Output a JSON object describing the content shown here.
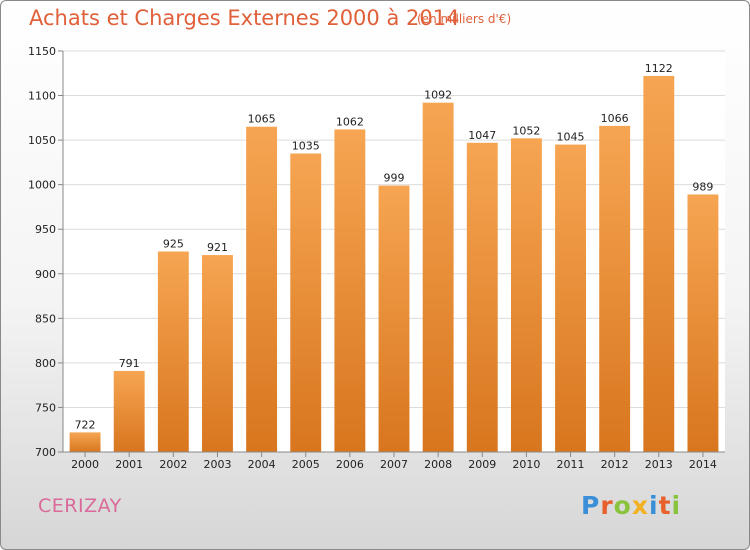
{
  "chart_data": {
    "type": "bar",
    "title": "Achats et Charges Externes 2000 à 2014",
    "subtitle": "(en milliers d'€)",
    "categories": [
      "2000",
      "2001",
      "2002",
      "2003",
      "2004",
      "2005",
      "2006",
      "2007",
      "2008",
      "2009",
      "2010",
      "2011",
      "2012",
      "2013",
      "2014"
    ],
    "values": [
      722,
      791,
      925,
      921,
      1065,
      1035,
      1062,
      999,
      1092,
      1047,
      1052,
      1045,
      1066,
      1122,
      989
    ],
    "ylim": [
      700,
      1150
    ],
    "yticks": [
      700,
      750,
      800,
      850,
      900,
      950,
      1000,
      1050,
      1100,
      1150
    ],
    "grid": true,
    "bar_color_top": "#f6a552",
    "bar_color_bottom": "#d8761e"
  },
  "commune": "CERIZAY",
  "logo": {
    "text": "Proxiti",
    "letter_colors": [
      "#3a8fd6",
      "#e8602b",
      "#8ac43f",
      "#f2b120",
      "#3a8fd6",
      "#e8602b",
      "#8ac43f"
    ]
  }
}
